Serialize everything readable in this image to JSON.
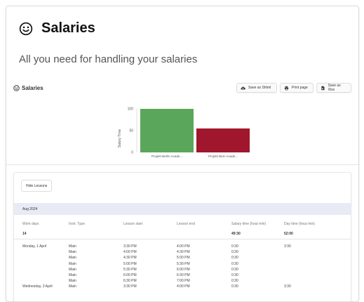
{
  "card": {
    "title": "Salaries",
    "icon": "smiley-icon",
    "subtitle": "All you need for handling your salaries"
  },
  "toolbar": {
    "title": "Salaries",
    "save_html_label": "Save as Shtml",
    "print_label": "Print page",
    "save_xlsx_label": "Save as Xlsx"
  },
  "chart_data": {
    "type": "bar",
    "categories": [
      "Projekt Berlin Acade...",
      "Projekt Bern Acade..."
    ],
    "values": [
      100,
      55
    ],
    "colors": [
      "#5aa65a",
      "#a0162c"
    ],
    "ylabel": "Salary Time",
    "ylim": [
      0,
      100
    ],
    "yticks": [
      0,
      50,
      100
    ]
  },
  "lessons": {
    "hide_label": "Hide Lessons",
    "month": "Aug 2024",
    "columns": [
      "Work days",
      "Instr. Type",
      "Lesson start",
      "Lesson end",
      "Salary time (hour:min)",
      "Day time (hour:min)"
    ],
    "totals": [
      "14",
      "",
      "",
      "",
      "49:30",
      "52:00"
    ],
    "rows": [
      [
        "Monday, 1 April",
        "Main",
        "3:30 PM",
        "4:00 PM",
        "0:30",
        "3:30"
      ],
      [
        "",
        "Main",
        "4:00 PM",
        "4:30 PM",
        "0:30",
        ""
      ],
      [
        "",
        "Main",
        "4:30 PM",
        "5:00 PM",
        "0:30",
        ""
      ],
      [
        "",
        "Main",
        "5:00 PM",
        "5:30 PM",
        "0:30",
        ""
      ],
      [
        "",
        "Main",
        "5:30 PM",
        "6:00 PM",
        "0:30",
        ""
      ],
      [
        "",
        "Main",
        "6:00 PM",
        "6:30 PM",
        "0:30",
        ""
      ],
      [
        "",
        "Main",
        "6:30 PM",
        "7:00 PM",
        "0:30",
        ""
      ],
      [
        "Wednesday, 3 April",
        "Main",
        "3:30 PM",
        "4:00 PM",
        "0:30",
        "3:30"
      ]
    ]
  }
}
